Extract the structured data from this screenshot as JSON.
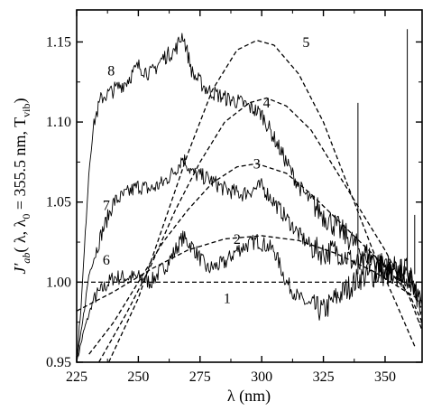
{
  "chart_data": {
    "type": "line",
    "title": "",
    "xlabel": "λ  (nm)",
    "ylabel_parts": {
      "main": "J′",
      "sub_ab": "ab",
      "args": "( λ, λ",
      "sub_0": "0",
      "args2": " = 355.5 nm, T",
      "sub_vib": "vib",
      "close": ")"
    },
    "xlim": [
      225,
      365
    ],
    "ylim": [
      0.95,
      1.17
    ],
    "xticks": [
      225,
      250,
      275,
      300,
      325,
      350
    ],
    "yticks": [
      0.95,
      1.0,
      1.05,
      1.1,
      1.15
    ],
    "xtick_labels": [
      "225",
      "250",
      "275",
      "300",
      "325",
      "350"
    ],
    "ytick_labels": [
      "0.95",
      "1.00",
      "1.05",
      "1.10",
      "1.15"
    ],
    "grid": false,
    "legend": "none",
    "series": [
      {
        "name": "1",
        "style": "dashed",
        "x": [
          225,
          365
        ],
        "y": [
          1.0,
          1.0
        ]
      },
      {
        "name": "2",
        "style": "dashed",
        "x": [
          225,
          240,
          255,
          270,
          285,
          300,
          315,
          330,
          345,
          365
        ],
        "y": [
          0.982,
          0.994,
          1.008,
          1.02,
          1.027,
          1.029,
          1.026,
          1.018,
          1.007,
          0.988
        ]
      },
      {
        "name": "3",
        "style": "dashed",
        "x": [
          230,
          240,
          250,
          260,
          270,
          280,
          290,
          298,
          310,
          320,
          330,
          340,
          350,
          360,
          365
        ],
        "y": [
          0.955,
          0.975,
          1.0,
          1.025,
          1.045,
          1.062,
          1.072,
          1.074,
          1.068,
          1.055,
          1.04,
          1.025,
          1.01,
          0.992,
          0.975
        ]
      },
      {
        "name": "4",
        "style": "dashed",
        "x": [
          234,
          245,
          255,
          265,
          275,
          285,
          295,
          302,
          310,
          320,
          330,
          340,
          350,
          360,
          365
        ],
        "y": [
          0.95,
          0.98,
          1.01,
          1.045,
          1.075,
          1.1,
          1.112,
          1.115,
          1.11,
          1.095,
          1.07,
          1.045,
          1.02,
          0.99,
          0.97
        ]
      },
      {
        "name": "5",
        "style": "dashed",
        "x": [
          238,
          250,
          260,
          270,
          280,
          290,
          298,
          305,
          315,
          325,
          335,
          345,
          355,
          362
        ],
        "y": [
          0.95,
          0.99,
          1.035,
          1.08,
          1.12,
          1.145,
          1.151,
          1.148,
          1.13,
          1.1,
          1.06,
          1.02,
          0.985,
          0.96
        ]
      },
      {
        "name": "6",
        "style": "solid",
        "x": [
          225,
          228,
          232,
          240,
          250,
          255,
          262,
          268,
          272,
          278,
          285,
          290,
          298,
          305,
          310,
          315,
          320,
          325,
          330,
          340,
          350,
          360,
          365
        ],
        "y": [
          0.95,
          0.97,
          0.99,
          1.003,
          1.003,
          1.0,
          1.012,
          1.028,
          1.022,
          1.008,
          1.012,
          1.02,
          1.026,
          1.02,
          1.0,
          0.99,
          0.985,
          0.982,
          0.99,
          1.003,
          1.005,
          1.008,
          0.985
        ]
      },
      {
        "name": "7",
        "style": "solid",
        "x": [
          225,
          227,
          230,
          235,
          240,
          245,
          250,
          255,
          260,
          265,
          268,
          272,
          278,
          285,
          292,
          300,
          305,
          310,
          315,
          320,
          325,
          330,
          335,
          340,
          345,
          350,
          355,
          360,
          365
        ],
        "y": [
          0.95,
          0.97,
          1.005,
          1.03,
          1.05,
          1.055,
          1.06,
          1.058,
          1.062,
          1.07,
          1.078,
          1.068,
          1.065,
          1.058,
          1.055,
          1.06,
          1.05,
          1.04,
          1.03,
          1.022,
          1.018,
          1.02,
          1.015,
          1.01,
          1.012,
          1.008,
          1.005,
          1.003,
          0.985
        ]
      },
      {
        "name": "8",
        "style": "solid",
        "x": [
          225,
          227,
          230,
          232,
          235,
          240,
          245,
          250,
          255,
          260,
          265,
          268,
          272,
          278,
          285,
          292,
          300,
          305,
          310,
          315,
          320,
          325,
          330,
          335,
          340,
          345,
          350,
          355,
          360,
          365
        ],
        "y": [
          0.95,
          0.99,
          1.07,
          1.1,
          1.115,
          1.12,
          1.125,
          1.135,
          1.13,
          1.14,
          1.145,
          1.155,
          1.13,
          1.12,
          1.115,
          1.112,
          1.105,
          1.09,
          1.075,
          1.06,
          1.05,
          1.042,
          1.035,
          1.028,
          1.02,
          1.015,
          1.01,
          1.008,
          1.0,
          0.985
        ]
      }
    ],
    "curve_labels": [
      {
        "text": "1",
        "x": 286,
        "y": 0.987
      },
      {
        "text": "2",
        "x": 290,
        "y": 1.024
      },
      {
        "text": "3",
        "x": 298,
        "y": 1.071
      },
      {
        "text": "4",
        "x": 302,
        "y": 1.109
      },
      {
        "text": "5",
        "x": 318,
        "y": 1.147
      },
      {
        "text": "6",
        "x": 237,
        "y": 1.011
      },
      {
        "text": "7",
        "x": 237,
        "y": 1.045
      },
      {
        "text": "8",
        "x": 239,
        "y": 1.129
      }
    ],
    "spikes": [
      {
        "x": 339,
        "y_top": 1.112
      },
      {
        "x": 359,
        "y_top": 1.158
      },
      {
        "x": 362,
        "y_top": 1.042
      }
    ]
  }
}
